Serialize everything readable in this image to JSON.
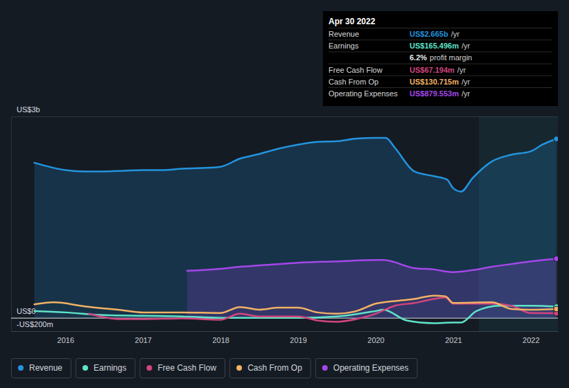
{
  "chart_data": {
    "type": "line",
    "xlim": [
      2015.3,
      2022.35
    ],
    "xticks": [
      2016,
      2017,
      2018,
      2019,
      2020,
      2021,
      2022
    ],
    "ylim": [
      -200,
      3000
    ],
    "yticks": [
      {
        "value": -200,
        "label": "-US$200m"
      },
      {
        "value": 0,
        "label": "US$0"
      },
      {
        "value": 3000,
        "label": "US$3b"
      }
    ],
    "grid": true,
    "legend": "bottom",
    "highlight": {
      "x": [
        2021.33,
        2022.35
      ]
    },
    "series": [
      {
        "name": "Revenue",
        "type": "area",
        "color": "#2394df",
        "x": [
          2015.6,
          2016.0,
          2016.25,
          2016.5,
          2016.75,
          2017.0,
          2017.25,
          2017.5,
          2017.75,
          2018.0,
          2018.25,
          2018.5,
          2018.75,
          2019.0,
          2019.25,
          2019.5,
          2019.75,
          2020.0,
          2020.13,
          2020.25,
          2020.5,
          2020.75,
          2020.92,
          2021.0,
          2021.1,
          2021.25,
          2021.5,
          2021.75,
          2022.0,
          2022.15,
          2022.33
        ],
        "values": [
          2310,
          2200,
          2180,
          2180,
          2190,
          2200,
          2200,
          2220,
          2230,
          2250,
          2370,
          2440,
          2520,
          2580,
          2620,
          2630,
          2670,
          2680,
          2680,
          2530,
          2180,
          2110,
          2060,
          1930,
          1880,
          2080,
          2330,
          2430,
          2480,
          2580,
          2665
        ]
      },
      {
        "name": "Earnings",
        "type": "line",
        "color": "#5fe3c9",
        "x": [
          2015.6,
          2016.0,
          2016.5,
          2017.0,
          2017.5,
          2018.0,
          2018.5,
          2019.0,
          2019.5,
          2020.0,
          2020.1,
          2020.4,
          2020.75,
          2021.0,
          2021.1,
          2021.3,
          2021.6,
          2022.0,
          2022.33
        ],
        "values": [
          100,
          80,
          40,
          30,
          20,
          0,
          0,
          0,
          20,
          100,
          120,
          -40,
          -80,
          -70,
          -70,
          100,
          180,
          180,
          165.5
        ]
      },
      {
        "name": "Free Cash Flow",
        "type": "line",
        "color": "#d2457f",
        "x": [
          2016.3,
          2016.7,
          2017.0,
          2017.5,
          2018.0,
          2018.25,
          2018.5,
          2019.0,
          2019.25,
          2019.5,
          2019.75,
          2020.0,
          2020.25,
          2020.5,
          2020.75,
          2020.9,
          2021.0,
          2021.5,
          2021.75,
          2022.0,
          2022.33
        ],
        "values": [
          60,
          -20,
          -20,
          -10,
          -30,
          60,
          20,
          20,
          -40,
          -60,
          -20,
          60,
          180,
          220,
          280,
          300,
          210,
          210,
          180,
          70,
          67.2
        ]
      },
      {
        "name": "Cash From Op",
        "type": "line",
        "color": "#f2b264",
        "x": [
          2015.6,
          2015.85,
          2016.25,
          2016.75,
          2017.0,
          2017.5,
          2018.0,
          2018.25,
          2018.5,
          2018.75,
          2019.0,
          2019.25,
          2019.5,
          2019.75,
          2020.0,
          2020.25,
          2020.5,
          2020.75,
          2020.9,
          2021.0,
          2021.5,
          2021.75,
          2022.0,
          2022.33
        ],
        "values": [
          200,
          230,
          170,
          110,
          80,
          80,
          70,
          160,
          120,
          150,
          150,
          80,
          60,
          100,
          210,
          250,
          280,
          330,
          320,
          220,
          230,
          130,
          120,
          130.7
        ]
      },
      {
        "name": "Operating Expenses",
        "type": "area",
        "color": "#a547ea",
        "x": [
          2017.57,
          2018.0,
          2018.25,
          2018.5,
          2019.0,
          2019.5,
          2020.0,
          2020.1,
          2020.5,
          2020.75,
          2021.0,
          2021.25,
          2021.5,
          2021.75,
          2022.0,
          2022.33
        ],
        "values": [
          700,
          730,
          760,
          780,
          820,
          840,
          860,
          860,
          740,
          720,
          680,
          710,
          760,
          800,
          840,
          879.6
        ]
      }
    ],
    "tooltip": {
      "title": "Apr 30 2022",
      "rows": [
        {
          "label": "Revenue",
          "value": "US$2.665b",
          "unit": "/yr"
        },
        {
          "label": "Earnings",
          "value": "US$165.496m",
          "unit": "/yr"
        },
        {
          "value": "6.2%",
          "unit": "profit margin"
        },
        {
          "label": "Free Cash Flow",
          "value": "US$67.194m",
          "unit": "/yr"
        },
        {
          "label": "Cash From Op",
          "value": "US$130.715m",
          "unit": "/yr"
        },
        {
          "label": "Operating Expenses",
          "value": "US$879.553m",
          "unit": "/yr"
        }
      ]
    }
  }
}
